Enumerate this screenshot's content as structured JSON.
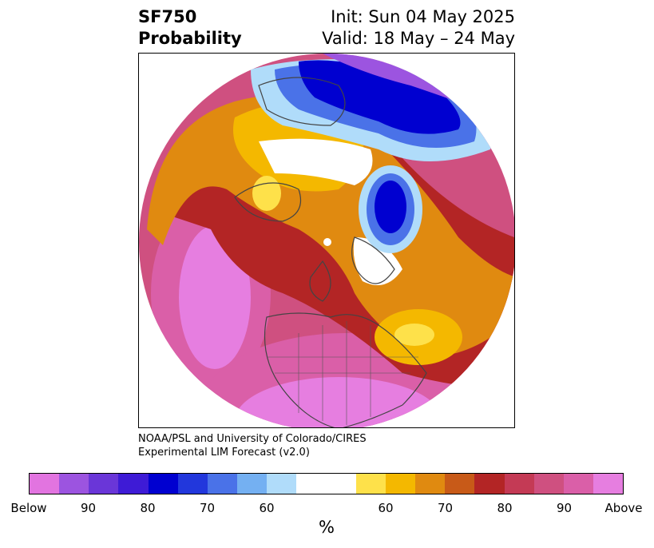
{
  "header": {
    "title_line1": "SF750",
    "title_line2": "Probability",
    "init": "Init: Sun 04 May 2025",
    "valid": "Valid: 18 May – 24 May"
  },
  "credit": {
    "line1": "NOAA/PSL and University of Colorado/CIRES",
    "line2": "Experimental LIM Forecast (v2.0)"
  },
  "colorbar": {
    "colors": [
      "#e274e0",
      "#9c54e0",
      "#6a36d8",
      "#3e1bd6",
      "#0000d0",
      "#2237dc",
      "#4a72e8",
      "#74b0f2",
      "#b0dcfa",
      "#ffffff",
      "#ffffff",
      "#fee14a",
      "#f4b800",
      "#e08a10",
      "#c85a18",
      "#b32525",
      "#c43a55",
      "#cf5080",
      "#da5fa8",
      "#e67ee0"
    ],
    "tick_labels": [
      "Below",
      "90",
      "80",
      "70",
      "60",
      "60",
      "70",
      "80",
      "90",
      "Above"
    ],
    "unit_label": "%"
  },
  "map": {
    "projection": "north-polar-stereographic",
    "field": "SF750 probability",
    "features": [
      "coastlines",
      "country-borders",
      "state-borders"
    ]
  }
}
